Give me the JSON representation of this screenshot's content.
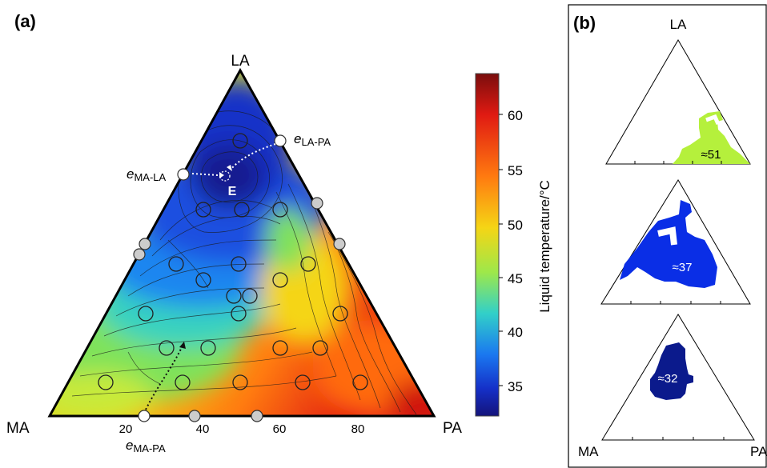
{
  "panel_a": {
    "label": "(a)",
    "vertex_top": "LA",
    "vertex_left": "MA",
    "vertex_right": "PA",
    "bottom_ticks": [
      "20",
      "40",
      "60",
      "80"
    ],
    "eutectic_label": "E",
    "annotations": {
      "ma_la": {
        "main": "e",
        "sub": "MA-LA"
      },
      "la_pa": {
        "main": "e",
        "sub": "LA-PA"
      },
      "ma_pa": {
        "main": "e",
        "sub": "MA-PA"
      }
    }
  },
  "panel_b": {
    "label": "(b)",
    "vertex_top": "LA",
    "vertex_left": "MA",
    "vertex_right": "PA",
    "regions": [
      {
        "label": "≈51",
        "color": "#b5f03c"
      },
      {
        "label": "≈37",
        "color": "#0a2ee6"
      },
      {
        "label": "≈32",
        "color": "#0b1a8c"
      }
    ]
  },
  "colorbar": {
    "label": "Liquid temperature/°C",
    "ticks": [
      "60",
      "55",
      "50",
      "45",
      "40",
      "35"
    ],
    "colors": [
      "#7a0d0d",
      "#e01a12",
      "#ff7a10",
      "#f5d515",
      "#9ee84a",
      "#32d0c8",
      "#1a78f0",
      "#1530c8",
      "#14137a"
    ]
  },
  "chart_data": {
    "type": "heatmap",
    "title": "",
    "axes": [
      "MA",
      "LA",
      "PA"
    ],
    "bottom_axis_ticks": [
      20,
      40,
      60,
      80
    ],
    "value_range": [
      32,
      64
    ],
    "colorbar_label": "Liquid temperature/°C",
    "eutectic_points": [
      "e MA-LA",
      "e LA-PA",
      "e MA-PA"
    ],
    "eutectic_minimum": "E",
    "regions_panel_b": [
      {
        "label": "≈51",
        "color": "#b5f03c"
      },
      {
        "label": "≈37",
        "color": "#0a2ee6"
      },
      {
        "label": "≈32",
        "color": "#0b1a8c"
      }
    ]
  }
}
